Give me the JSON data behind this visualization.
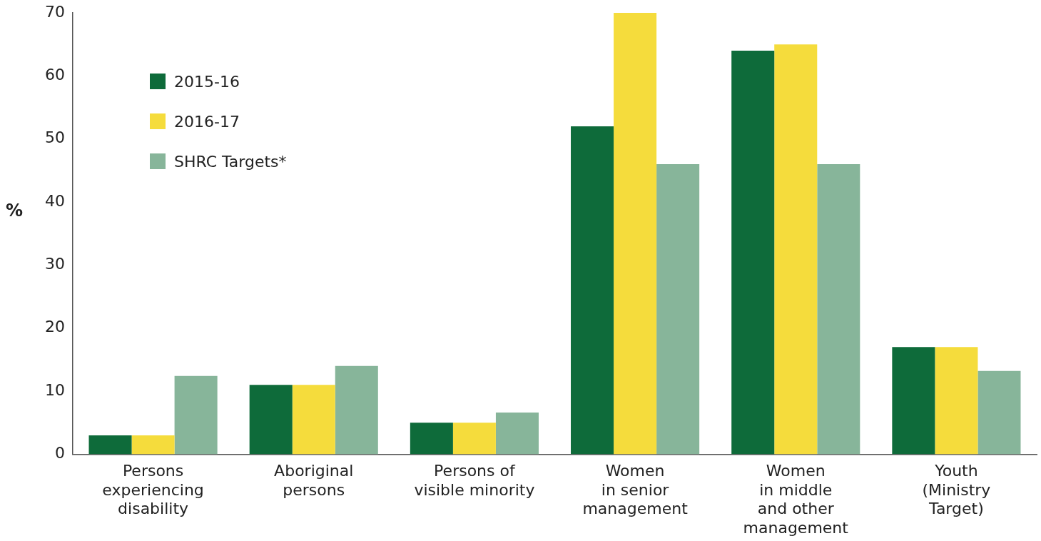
{
  "chart_data": {
    "type": "bar",
    "ylabel": "%",
    "categories": [
      "Persons\nexperiencing\ndisability",
      "Aboriginal\npersons",
      "Persons of\nvisible minority",
      "Women\nin senior\nmanagement",
      "Women\nin middle\nand other\nmanagement",
      "Youth\n(Ministry\nTarget)"
    ],
    "series": [
      {
        "name": "2015-16",
        "color": "#0e6b3a",
        "values": [
          3,
          11,
          5,
          52,
          64,
          17
        ]
      },
      {
        "name": "2016-17",
        "color": "#f5dc3c",
        "values": [
          3,
          11,
          5,
          70,
          65,
          17
        ]
      },
      {
        "name": "SHRC Targets*",
        "color": "#87b59a",
        "values": [
          12.4,
          14,
          6.6,
          46,
          46,
          13.2
        ]
      }
    ],
    "ylim": [
      0,
      70
    ],
    "yticks": [
      0,
      10,
      20,
      30,
      40,
      50,
      60,
      70
    ],
    "grid": false,
    "legend": "top left"
  }
}
